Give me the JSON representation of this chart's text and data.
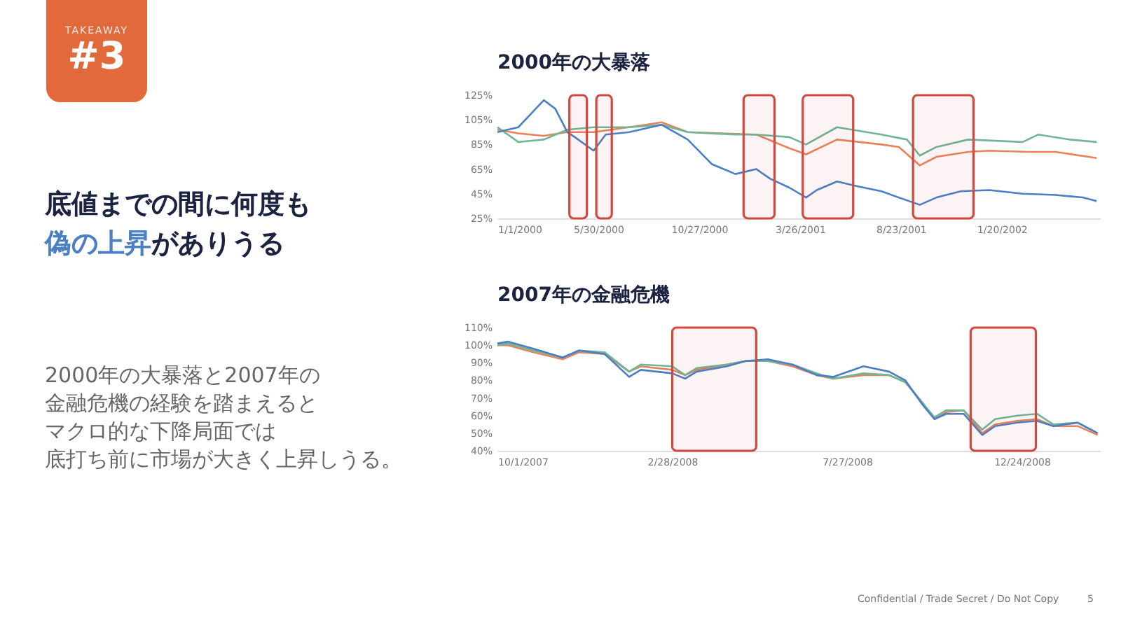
{
  "chart_data": [
    {
      "type": "other",
      "subtitle": "TAKEAWAY",
      "title": "#3",
      "annotations": [
        "底値までの間に何度も",
        "偽の上昇",
        "がありうる",
        "2000年の大暴落と2007年の",
        "金融危機の経験を踏まえると",
        "マクロ的な下降局面では",
        "底打ち前に市場が大きく上昇しうる。",
        "Confidential / Trade Secret / Do Not Copy",
        "5"
      ]
    },
    {
      "type": "line",
      "title": "2000年の大暴落",
      "xlim": [
        "2000-01-01",
        "2002-06-15"
      ],
      "xticks": [
        {
          "value": "2000-01-01",
          "label": "1/1/2000"
        },
        {
          "value": "2000-05-30",
          "label": "5/30/2000"
        },
        {
          "value": "2000-10-27",
          "label": "10/27/2000"
        },
        {
          "value": "2001-03-26",
          "label": "3/26/2001"
        },
        {
          "value": "2001-08-23",
          "label": "8/23/2001"
        },
        {
          "value": "2002-01-20",
          "label": "1/20/2002"
        }
      ],
      "ylim": [
        25,
        125
      ],
      "yticks": [
        {
          "value": 25,
          "label": "25%"
        },
        {
          "value": 45,
          "label": "45%"
        },
        {
          "value": 65,
          "label": "65%"
        },
        {
          "value": 85,
          "label": "85%"
        },
        {
          "value": 105,
          "label": "105%"
        },
        {
          "value": 125,
          "label": "125%"
        }
      ],
      "grid": false,
      "marker": "none",
      "line_style": "solid",
      "bands": [
        {
          "axis": "x",
          "from": "2000-04-17",
          "to": "2000-05-13",
          "color": "#d0483e"
        },
        {
          "axis": "x",
          "from": "2000-05-27",
          "to": "2000-06-19",
          "color": "#d0483e"
        },
        {
          "axis": "x",
          "from": "2001-01-01",
          "to": "2001-02-16",
          "color": "#d0483e"
        },
        {
          "axis": "x",
          "from": "2001-03-30",
          "to": "2001-06-13",
          "color": "#d0483e"
        },
        {
          "axis": "x",
          "from": "2001-09-10",
          "to": "2001-12-09",
          "color": "#d0483e"
        }
      ],
      "series": [
        {
          "color": "#e8825a",
          "x": [
            "2000-01-01",
            "2000-02-01",
            "2000-03-10",
            "2000-04-14",
            "2000-05-23",
            "2000-07-15",
            "2000-09-01",
            "2000-10-10",
            "2001-01-20",
            "2001-03-10",
            "2001-04-04",
            "2001-05-20",
            "2001-07-25",
            "2001-08-20",
            "2001-09-20",
            "2001-10-15",
            "2001-12-01",
            "2002-01-01",
            "2002-03-01",
            "2002-04-10",
            "2002-06-10"
          ],
          "values": [
            97,
            94,
            92,
            95,
            95,
            99,
            103,
            95,
            93,
            82,
            77,
            89,
            85,
            83,
            68,
            75,
            79,
            80,
            79,
            79,
            74
          ]
        },
        {
          "color": "#6fb596",
          "x": [
            "2000-01-01",
            "2000-02-01",
            "2000-03-10",
            "2000-04-14",
            "2000-05-23",
            "2000-07-15",
            "2000-09-01",
            "2000-10-10",
            "2000-12-20",
            "2001-01-20",
            "2001-03-10",
            "2001-04-04",
            "2001-05-20",
            "2001-07-25",
            "2001-09-01",
            "2001-09-20",
            "2001-10-15",
            "2001-12-01",
            "2002-02-20",
            "2002-03-15",
            "2002-05-01",
            "2002-06-10"
          ],
          "values": [
            99,
            87,
            89,
            97,
            99,
            99,
            101,
            95,
            93,
            93,
            91,
            85,
            99,
            93,
            89,
            76,
            83,
            89,
            87,
            93,
            89,
            87
          ]
        },
        {
          "color": "#4a7fc4",
          "x": [
            "2000-01-01",
            "2000-02-01",
            "2000-03-10",
            "2000-03-27",
            "2000-04-14",
            "2000-04-25",
            "2000-05-23",
            "2000-06-10",
            "2000-07-15",
            "2000-09-01",
            "2000-10-10",
            "2000-11-15",
            "2000-12-20",
            "2001-01-20",
            "2001-02-10",
            "2001-03-10",
            "2001-04-04",
            "2001-04-20",
            "2001-05-20",
            "2001-06-20",
            "2001-07-25",
            "2001-09-20",
            "2001-10-15",
            "2001-11-20",
            "2002-01-01",
            "2002-02-20",
            "2002-04-10",
            "2002-05-20",
            "2002-06-10"
          ],
          "values": [
            95,
            99,
            121,
            114,
            95,
            91,
            80,
            93,
            95,
            101,
            89,
            69,
            61,
            65,
            57,
            50,
            42,
            48,
            55,
            51,
            47,
            36,
            42,
            47,
            48,
            45,
            44,
            42,
            39
          ]
        }
      ]
    },
    {
      "type": "line",
      "title": "2007年の金融危機",
      "xlim": [
        "2007-10-01",
        "2009-03-01"
      ],
      "xticks": [
        {
          "value": "2007-10-01",
          "label": "10/1/2007"
        },
        {
          "value": "2008-02-28",
          "label": "2/28/2008"
        },
        {
          "value": "2008-07-27",
          "label": "7/27/2008"
        },
        {
          "value": "2008-12-24",
          "label": "12/24/2008"
        }
      ],
      "ylim": [
        40,
        110
      ],
      "yticks": [
        {
          "value": 40,
          "label": "40%"
        },
        {
          "value": 50,
          "label": "50%"
        },
        {
          "value": 60,
          "label": "60%"
        },
        {
          "value": 70,
          "label": "70%"
        },
        {
          "value": 80,
          "label": "80%"
        },
        {
          "value": 90,
          "label": "90%"
        },
        {
          "value": 100,
          "label": "100%"
        },
        {
          "value": 110,
          "label": "110%"
        }
      ],
      "grid": false,
      "marker": "none",
      "line_style": "solid",
      "bands": [
        {
          "axis": "x",
          "from": "2008-02-28",
          "to": "2008-05-10",
          "color": "#d0483e"
        },
        {
          "axis": "x",
          "from": "2008-11-10",
          "to": "2009-01-05",
          "color": "#d0483e"
        }
      ],
      "series": [
        {
          "color": "#e8825a",
          "x": [
            "2007-10-01",
            "2007-10-10",
            "2007-11-01",
            "2007-11-26",
            "2007-12-10",
            "2008-01-01",
            "2008-01-22",
            "2008-02-01",
            "2008-02-28",
            "2008-03-10",
            "2008-03-20",
            "2008-04-15",
            "2008-05-01",
            "2008-05-20",
            "2008-06-10",
            "2008-07-01",
            "2008-07-15",
            "2008-08-10",
            "2008-09-01",
            "2008-09-15",
            "2008-09-30",
            "2008-10-10",
            "2008-10-20",
            "2008-11-04",
            "2008-11-20",
            "2008-12-01",
            "2008-12-20",
            "2009-01-06",
            "2009-01-20",
            "2009-02-10",
            "2009-02-27"
          ],
          "values": [
            100,
            100,
            96,
            92,
            96,
            95,
            85,
            88,
            86,
            83,
            86,
            89,
            91,
            91,
            88,
            83,
            81,
            83,
            83,
            79,
            67,
            58,
            62,
            63,
            50,
            55,
            57,
            58,
            54,
            54,
            49
          ]
        },
        {
          "color": "#6fb596",
          "x": [
            "2007-10-01",
            "2007-10-10",
            "2007-11-01",
            "2007-11-26",
            "2007-12-10",
            "2008-01-01",
            "2008-01-22",
            "2008-02-01",
            "2008-02-28",
            "2008-03-10",
            "2008-03-20",
            "2008-04-15",
            "2008-05-01",
            "2008-05-20",
            "2008-06-10",
            "2008-07-01",
            "2008-07-15",
            "2008-08-10",
            "2008-09-01",
            "2008-09-15",
            "2008-09-30",
            "2008-10-10",
            "2008-10-20",
            "2008-11-04",
            "2008-11-20",
            "2008-12-01",
            "2008-12-20",
            "2009-01-06",
            "2009-01-20",
            "2009-02-10",
            "2009-02-27"
          ],
          "values": [
            100,
            101,
            97,
            93,
            97,
            96,
            85,
            89,
            88,
            83,
            87,
            89,
            91,
            91,
            89,
            84,
            81,
            84,
            83,
            79,
            67,
            59,
            63,
            63,
            52,
            58,
            60,
            61,
            55,
            56,
            50
          ]
        },
        {
          "color": "#4a7fc4",
          "x": [
            "2007-10-01",
            "2007-10-10",
            "2007-11-01",
            "2007-11-26",
            "2007-12-10",
            "2008-01-01",
            "2008-01-22",
            "2008-02-01",
            "2008-02-28",
            "2008-03-10",
            "2008-03-20",
            "2008-04-15",
            "2008-05-01",
            "2008-05-20",
            "2008-06-10",
            "2008-07-01",
            "2008-07-15",
            "2008-08-10",
            "2008-09-01",
            "2008-09-15",
            "2008-09-30",
            "2008-10-10",
            "2008-10-20",
            "2008-11-04",
            "2008-11-20",
            "2008-12-01",
            "2008-12-20",
            "2009-01-06",
            "2009-01-20",
            "2009-02-10",
            "2009-02-27"
          ],
          "values": [
            101,
            102,
            98,
            93,
            97,
            95,
            82,
            86,
            84,
            81,
            85,
            88,
            91,
            92,
            89,
            83,
            82,
            88,
            85,
            80,
            66,
            58,
            61,
            61,
            49,
            54,
            56,
            57,
            54,
            56,
            50
          ]
        }
      ]
    }
  ]
}
